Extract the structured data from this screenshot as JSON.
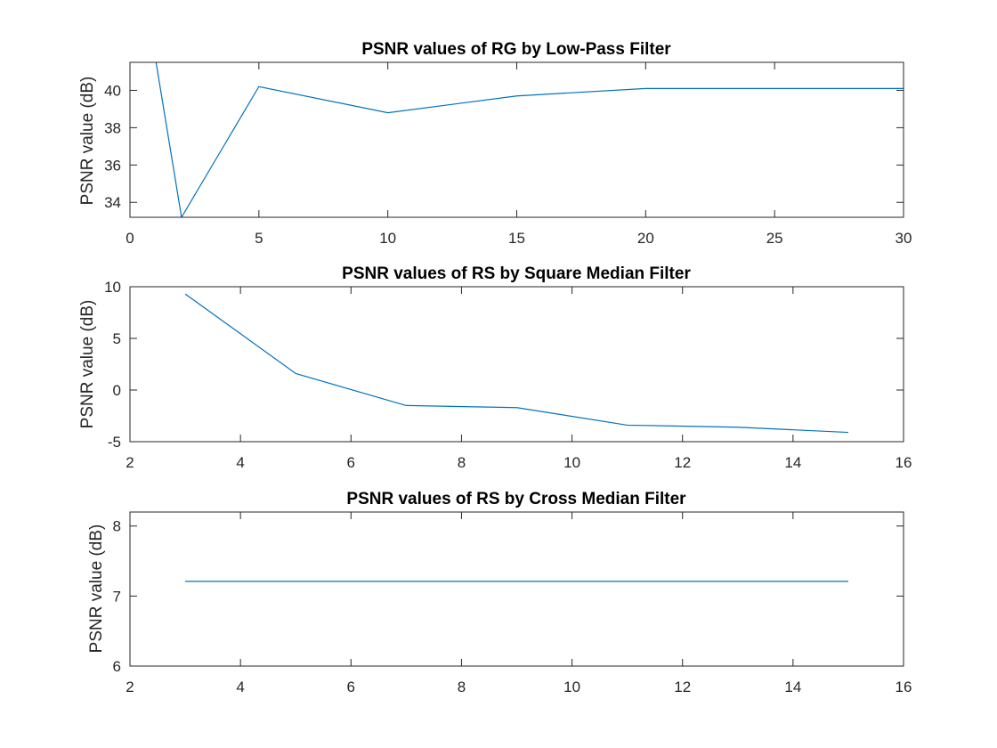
{
  "chart_data": [
    {
      "type": "line",
      "title": "PSNR values of RG by Low-Pass Filter",
      "xlabel": "",
      "ylabel": "PSNR value (dB)",
      "xlim": [
        0,
        30
      ],
      "ylim": [
        33.2,
        41.5
      ],
      "xticks": [
        0,
        5,
        10,
        15,
        20,
        25,
        30
      ],
      "yticks": [
        34,
        36,
        38,
        40
      ],
      "grid": false,
      "series": [
        {
          "x": [
            1,
            2,
            5,
            10,
            15,
            20,
            30
          ],
          "y": [
            41.6,
            33.2,
            40.2,
            38.8,
            39.7,
            40.1,
            40.1
          ]
        }
      ]
    },
    {
      "type": "line",
      "title": "PSNR values of RS by Square Median Filter",
      "xlabel": "",
      "ylabel": "PSNR value (dB)",
      "xlim": [
        2,
        16
      ],
      "ylim": [
        -5,
        10
      ],
      "xticks": [
        2,
        4,
        6,
        8,
        10,
        12,
        14,
        16
      ],
      "yticks": [
        -5,
        0,
        5,
        10
      ],
      "grid": false,
      "series": [
        {
          "x": [
            3,
            5,
            7,
            9,
            11,
            13,
            15
          ],
          "y": [
            9.3,
            1.6,
            -1.5,
            -1.7,
            -3.4,
            -3.6,
            -4.1
          ]
        }
      ]
    },
    {
      "type": "line",
      "title": "PSNR values of RS by Cross Median Filter",
      "xlabel": "",
      "ylabel": "PSNR value (dB)",
      "xlim": [
        2,
        16
      ],
      "ylim": [
        6,
        8.2
      ],
      "xticks": [
        2,
        4,
        6,
        8,
        10,
        12,
        14,
        16
      ],
      "yticks": [
        6,
        7,
        8
      ],
      "grid": false,
      "series": [
        {
          "x": [
            3,
            15
          ],
          "y": [
            7.21,
            7.21
          ]
        }
      ]
    }
  ],
  "colors": {
    "line": "#0072bd",
    "axis": "#262626"
  }
}
